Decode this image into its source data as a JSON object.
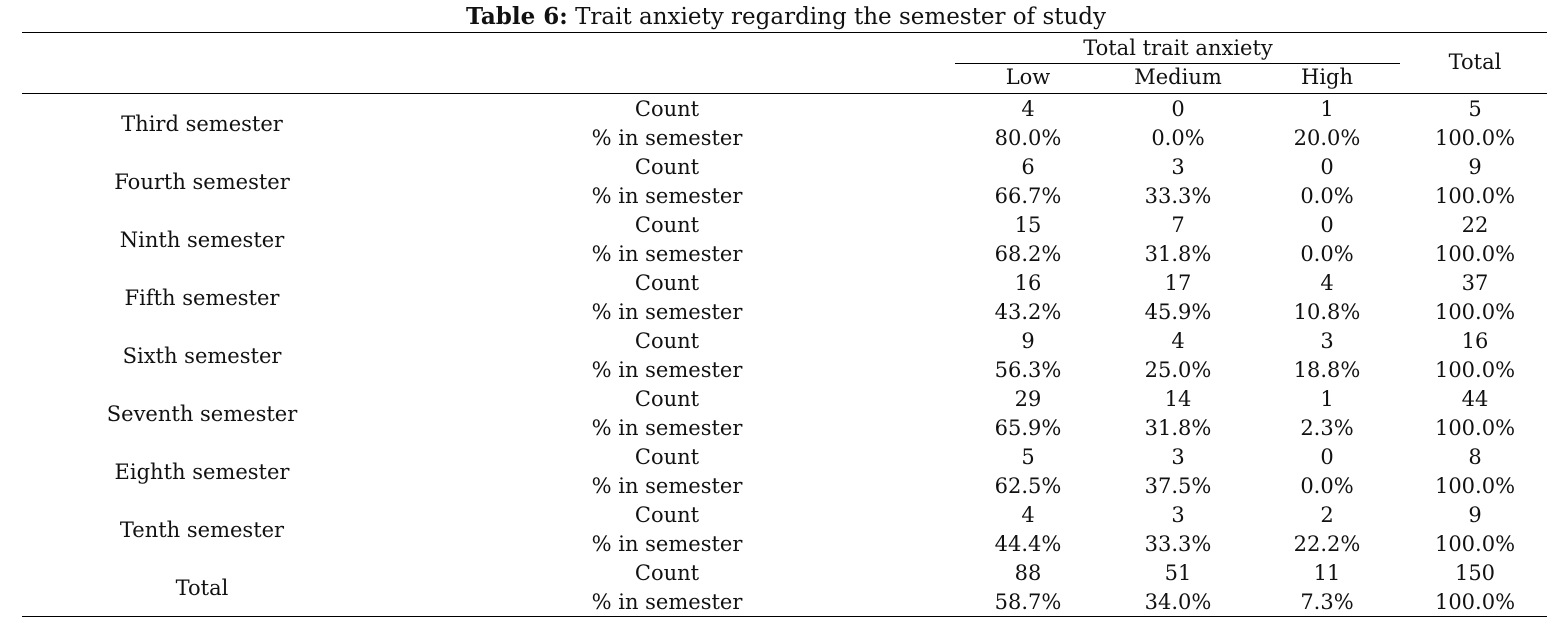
{
  "caption": {
    "label": "Table 6:",
    "title": "Trait anxiety regarding the semester of study"
  },
  "header": {
    "group": "Total trait anxiety",
    "columns": [
      "Low",
      "Medium",
      "High"
    ],
    "total": "Total"
  },
  "rows": [
    {
      "label": "Third semester",
      "count": [
        "4",
        "0",
        "1",
        "5"
      ],
      "pct": [
        "80.0%",
        "0.0%",
        "20.0%",
        "100.0%"
      ]
    },
    {
      "label": "Fourth semester",
      "count": [
        "6",
        "3",
        "0",
        "9"
      ],
      "pct": [
        "66.7%",
        "33.3%",
        "0.0%",
        "100.0%"
      ]
    },
    {
      "label": "Ninth semester",
      "count": [
        "15",
        "7",
        "0",
        "22"
      ],
      "pct": [
        "68.2%",
        "31.8%",
        "0.0%",
        "100.0%"
      ]
    },
    {
      "label": "Fifth semester",
      "count": [
        "16",
        "17",
        "4",
        "37"
      ],
      "pct": [
        "43.2%",
        "45.9%",
        "10.8%",
        "100.0%"
      ]
    },
    {
      "label": "Sixth semester",
      "count": [
        "9",
        "4",
        "3",
        "16"
      ],
      "pct": [
        "56.3%",
        "25.0%",
        "18.8%",
        "100.0%"
      ]
    },
    {
      "label": "Seventh semester",
      "count": [
        "29",
        "14",
        "1",
        "44"
      ],
      "pct": [
        "65.9%",
        "31.8%",
        "2.3%",
        "100.0%"
      ]
    },
    {
      "label": "Eighth semester",
      "count": [
        "5",
        "3",
        "0",
        "8"
      ],
      "pct": [
        "62.5%",
        "37.5%",
        "0.0%",
        "100.0%"
      ]
    },
    {
      "label": "Tenth semester",
      "count": [
        "4",
        "3",
        "2",
        "9"
      ],
      "pct": [
        "44.4%",
        "33.3%",
        "22.2%",
        "100.0%"
      ]
    },
    {
      "label": "Total",
      "count": [
        "88",
        "51",
        "11",
        "150"
      ],
      "pct": [
        "58.7%",
        "34.0%",
        "7.3%",
        "100.0%"
      ]
    }
  ],
  "stat_labels": {
    "count": "Count",
    "pct": "% in semester"
  }
}
